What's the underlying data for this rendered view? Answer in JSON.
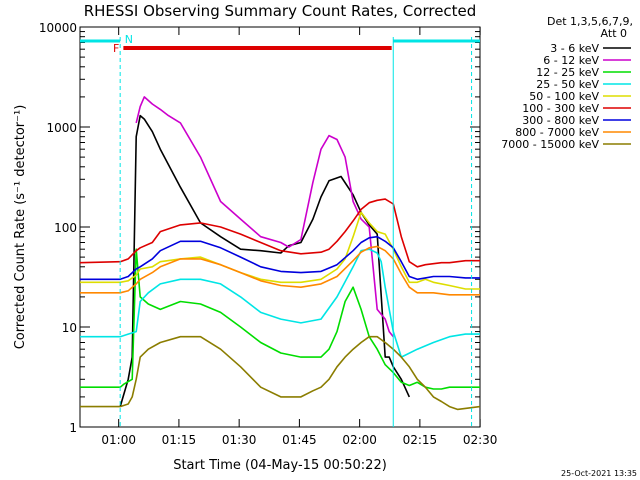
{
  "chart_data": {
    "type": "line",
    "title": "RHESSI Observing Summary Count Rates, Corrected",
    "xlabel": "Start Time (04-May-15 00:50:22)",
    "ylabel": "Corrected Count Rate (s⁻¹ detector⁻¹)",
    "x_units": "minutes after 00:50:22",
    "xlim": [
      0,
      99.6
    ],
    "ylim": [
      1,
      10000
    ],
    "yscale": "log",
    "x_ticks": [
      {
        "label": "01:00",
        "x": 9.63
      },
      {
        "label": "01:15",
        "x": 24.63
      },
      {
        "label": "01:30",
        "x": 39.63
      },
      {
        "label": "01:45",
        "x": 54.63
      },
      {
        "label": "02:00",
        "x": 69.63
      },
      {
        "label": "02:15",
        "x": 84.63
      },
      {
        "label": "02:30",
        "x": 99.63
      }
    ],
    "y_ticks": [
      {
        "label": "1",
        "y": 1
      },
      {
        "label": "10",
        "y": 10
      },
      {
        "label": "100",
        "y": 100
      },
      {
        "label": "1000",
        "y": 1000
      },
      {
        "label": "10000",
        "y": 10000
      }
    ],
    "legend_header": [
      "Det 1,3,5,6,7,9,",
      "Att 0"
    ],
    "legend_placement": "right",
    "series": [
      {
        "name": "3 - 6 keV",
        "color": "#000000",
        "x": [
          0,
          9,
          10,
          12,
          13,
          14,
          15,
          16,
          18,
          20,
          25,
          30,
          35,
          40,
          45,
          50,
          52,
          55,
          58,
          60,
          62,
          65,
          68,
          70,
          72,
          74,
          76,
          77,
          78,
          80,
          82,
          84
        ],
        "y": [
          null,
          null,
          1.6,
          3,
          5,
          800,
          1300,
          1200,
          900,
          600,
          250,
          110,
          80,
          60,
          58,
          55,
          65,
          70,
          120,
          200,
          290,
          320,
          210,
          140,
          105,
          85,
          5,
          5,
          4,
          3,
          2,
          null
        ]
      },
      {
        "name": "6 - 12 keV",
        "color": "#cc00cc",
        "x": [
          0,
          9,
          10,
          12,
          14,
          15,
          16,
          18,
          20,
          22,
          25,
          30,
          35,
          40,
          45,
          50,
          52,
          55,
          58,
          60,
          62,
          64,
          66,
          68,
          70,
          72,
          74,
          76,
          77,
          78,
          80
        ],
        "y": [
          null,
          null,
          null,
          null,
          1100,
          1600,
          2000,
          1700,
          1500,
          1300,
          1100,
          500,
          180,
          120,
          80,
          70,
          63,
          75,
          280,
          600,
          820,
          750,
          500,
          180,
          120,
          100,
          15,
          12,
          9,
          8,
          null
        ]
      },
      {
        "name": "12 - 25 keV",
        "color": "#00dd00",
        "x": [
          0,
          10,
          11,
          13,
          14,
          15,
          17,
          20,
          25,
          30,
          35,
          40,
          45,
          50,
          55,
          60,
          62,
          64,
          66,
          68,
          70,
          72,
          74,
          76,
          78,
          80,
          82,
          84,
          86,
          88,
          90,
          92,
          94,
          99.6
        ],
        "y": [
          2.5,
          2.5,
          2.7,
          3,
          60,
          20,
          17,
          15,
          18,
          17,
          14,
          10,
          7,
          5.5,
          5,
          5,
          6,
          9,
          18,
          25,
          15,
          8,
          6,
          4.2,
          3.5,
          2.8,
          2.6,
          2.8,
          2.5,
          2.4,
          2.4,
          2.5,
          2.5,
          2.5
        ]
      },
      {
        "name": "25 - 50 keV",
        "color": "#00e5e5",
        "x": [
          0,
          10,
          12,
          14,
          15,
          17,
          20,
          25,
          30,
          35,
          40,
          45,
          50,
          55,
          60,
          64,
          68,
          70,
          72,
          74,
          75,
          76,
          78,
          80,
          84,
          88,
          92,
          96,
          99.6
        ],
        "y": [
          8,
          8,
          8.5,
          9,
          18,
          22,
          27,
          30,
          30,
          27,
          20,
          14,
          12,
          11,
          12,
          20,
          40,
          58,
          60,
          55,
          45,
          25,
          9,
          5,
          6,
          7,
          8,
          8.5,
          8.5
        ]
      },
      {
        "name": "50 - 100 keV",
        "color": "#dddd00",
        "x": [
          0,
          10,
          12,
          14,
          15,
          18,
          20,
          25,
          30,
          35,
          40,
          45,
          50,
          55,
          60,
          64,
          66,
          68,
          70,
          72,
          74,
          76,
          78,
          80,
          82,
          84,
          86,
          88,
          92,
          96,
          99.6
        ],
        "y": [
          28,
          28,
          29,
          33,
          38,
          40,
          45,
          48,
          50,
          42,
          35,
          30,
          28,
          28,
          30,
          38,
          48,
          80,
          140,
          110,
          90,
          85,
          60,
          40,
          28,
          28,
          30,
          28,
          26,
          24,
          24
        ]
      },
      {
        "name": "100 - 300 keV",
        "color": "#dd0000",
        "x": [
          0,
          10,
          12,
          14,
          15,
          18,
          20,
          25,
          30,
          35,
          40,
          45,
          50,
          55,
          60,
          62,
          64,
          66,
          68,
          70,
          72,
          74,
          76,
          78,
          80,
          82,
          84,
          86,
          88,
          90,
          92,
          96,
          99.6
        ],
        "y": [
          44,
          45,
          48,
          58,
          62,
          70,
          90,
          105,
          110,
          100,
          85,
          70,
          58,
          54,
          56,
          60,
          72,
          90,
          115,
          150,
          175,
          185,
          190,
          170,
          80,
          45,
          40,
          42,
          43,
          44,
          44,
          46,
          46
        ]
      },
      {
        "name": "300 - 800 keV",
        "color": "#0000dd",
        "x": [
          0,
          10,
          12,
          14,
          15,
          18,
          20,
          25,
          30,
          35,
          40,
          45,
          50,
          55,
          60,
          64,
          68,
          70,
          72,
          74,
          76,
          78,
          80,
          82,
          84,
          86,
          88,
          92,
          96,
          99.6
        ],
        "y": [
          30,
          30,
          32,
          38,
          40,
          48,
          58,
          72,
          72,
          62,
          50,
          40,
          36,
          35,
          36,
          42,
          58,
          70,
          78,
          80,
          72,
          62,
          45,
          32,
          30,
          31,
          32,
          32,
          31,
          31
        ]
      },
      {
        "name": "800 - 7000 keV",
        "color": "#ff8800",
        "x": [
          0,
          10,
          12,
          14,
          15,
          18,
          20,
          25,
          30,
          35,
          40,
          45,
          50,
          55,
          60,
          64,
          68,
          70,
          72,
          74,
          76,
          78,
          80,
          82,
          84,
          86,
          88,
          92,
          96,
          99.6
        ],
        "y": [
          22,
          22,
          23,
          27,
          30,
          35,
          40,
          48,
          48,
          42,
          35,
          29,
          26,
          25,
          27,
          32,
          46,
          56,
          62,
          64,
          58,
          48,
          34,
          25,
          22,
          22,
          22,
          21,
          21,
          21
        ]
      },
      {
        "name": "7000 - 15000 keV",
        "color": "#8b7d00",
        "x": [
          0,
          10,
          12,
          13,
          14,
          15,
          17,
          20,
          25,
          30,
          35,
          40,
          45,
          50,
          55,
          58,
          60,
          62,
          64,
          66,
          68,
          70,
          72,
          74,
          76,
          78,
          80,
          82,
          84,
          86,
          88,
          90,
          92,
          94,
          99.6
        ],
        "y": [
          1.6,
          1.6,
          1.7,
          2,
          3,
          5,
          6,
          7,
          8,
          8,
          6,
          4,
          2.5,
          2,
          2,
          2.3,
          2.5,
          3,
          4,
          5,
          6,
          7,
          8,
          8,
          7,
          6,
          5,
          4,
          3,
          2.5,
          2,
          1.8,
          1.6,
          1.5,
          1.6
        ]
      }
    ],
    "flag_bars": [
      {
        "label": "",
        "color": "#00e5e5",
        "x_start": 0,
        "x_end": 10
      },
      {
        "label": "N",
        "color": "#00e5e5",
        "x_start": 10.4,
        "x_end": 10.4
      },
      {
        "label": "F",
        "color": "#dd0000",
        "x_start": 10.8,
        "x_end": 77.6
      },
      {
        "label": "",
        "color": "#00e5e5",
        "x_start": 78,
        "x_end": 99.6
      }
    ],
    "vertical_lines": [
      {
        "x": 10.0,
        "style": "dashed",
        "color": "#00e5e5"
      },
      {
        "x": 78.0,
        "style": "solid",
        "color": "#00e5e5"
      },
      {
        "x": 97.5,
        "style": "dashed",
        "color": "#00e5e5"
      }
    ],
    "footer_date": "25-Oct-2021 13:35"
  }
}
